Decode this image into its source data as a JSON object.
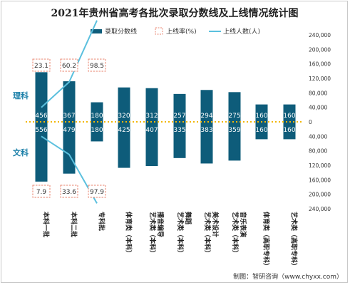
{
  "chart_data": {
    "type": "bar",
    "title": "2021年贵州省高考各批次录取分数线及上线情况统计图",
    "legend": {
      "placement": "top",
      "items": [
        {
          "label": "录取分数线",
          "kind": "bar"
        },
        {
          "label": "上线率(%)",
          "kind": "box"
        },
        {
          "label": "上线人数(人)",
          "kind": "line"
        }
      ]
    },
    "side_labels": {
      "top": "理科",
      "bottom": "文科"
    },
    "categories": [
      "本科一批",
      "本科二批",
      "专科批",
      "体育类(本科)",
      "艺术类(本科)播音编导",
      "艺术类(本科)舞蹈",
      "艺术类(本科)美术设计",
      "艺术类(本科)音乐表演",
      "体育类(高职专科)",
      "艺术类(高职专科)"
    ],
    "category_lines": [
      [
        "本科一批"
      ],
      [
        "本科二批"
      ],
      [
        "专科批"
      ],
      [
        "体育类（本科）"
      ],
      [
        "艺术类（本科）",
        "播音编导"
      ],
      [
        "艺术类（本科）",
        "舞蹈"
      ],
      [
        "艺术类（本科）",
        "美术设计"
      ],
      [
        "艺术类（本科）",
        "音乐表演"
      ],
      [
        "体育类（高职专科）"
      ],
      [
        "艺术类（高职专科）"
      ]
    ],
    "series": [
      {
        "name": "理科",
        "values": [
          456,
          367,
          180,
          320,
          312,
          257,
          294,
          275,
          160,
          160
        ]
      },
      {
        "name": "文科",
        "values": [
          556,
          479,
          180,
          425,
          407,
          335,
          383,
          359,
          160,
          160
        ]
      }
    ],
    "value_labels": {
      "理科": [
        "456",
        "367",
        "180",
        "320",
        "312",
        "257",
        "294",
        "275",
        "160",
        "160"
      ],
      "文科": [
        "556",
        "479",
        "180",
        "425",
        "407",
        "335",
        "383",
        "359",
        "160",
        "160"
      ]
    },
    "rate_labels": {
      "理科": [
        "23.1",
        "60.2",
        "98.5"
      ],
      "文科": [
        "7.9",
        "33.6",
        "97.9"
      ]
    },
    "enrolled_line": {
      "理科": [
        40000,
        110000,
        280000
      ],
      "文科": [
        -40000,
        -90000,
        -225000
      ]
    },
    "bar_values": {
      "理科": [
        137000,
        112000,
        54000,
        95000,
        93000,
        77000,
        88000,
        82000,
        48000,
        48000
      ],
      "文科": [
        -165000,
        -143000,
        -54000,
        -127000,
        -122000,
        -100000,
        -115000,
        -107000,
        -48000,
        -48000
      ]
    },
    "y_axis": {
      "min": -240000,
      "max": 240000,
      "step": 40000,
      "ticks": [
        "240,000",
        "200,000",
        "160,000",
        "120,000",
        "80,000",
        "40,000",
        "0",
        "40,000",
        "80,000",
        "120,000",
        "160,000",
        "200,000",
        "240,000"
      ]
    },
    "grid": false,
    "colors": {
      "bar": "#0e5c7a",
      "line": "#5bc0de",
      "dotted": "#f2b705",
      "box_border": "#e8836e",
      "side_label": "#1a7fa8",
      "text": "#333333"
    }
  },
  "source": "制图：智研咨询（www.chyxx.com）"
}
